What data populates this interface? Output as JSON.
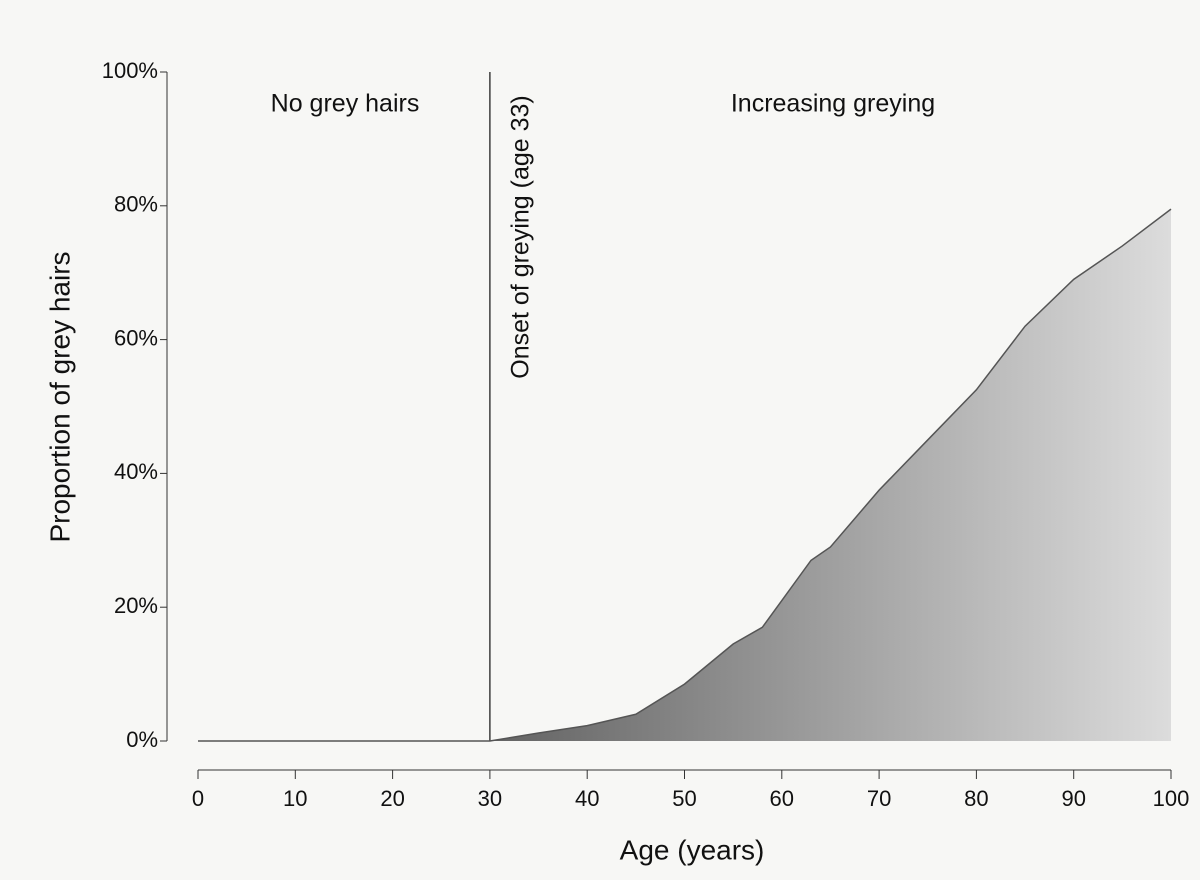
{
  "chart_data": {
    "type": "area",
    "x_label": "Age (years)",
    "y_label": "Proportion of grey hairs",
    "x": [
      0,
      5,
      10,
      15,
      20,
      25,
      30,
      35,
      40,
      45,
      50,
      55,
      58,
      60,
      63,
      65,
      70,
      75,
      80,
      85,
      90,
      95,
      100
    ],
    "values": [
      0,
      0,
      0,
      0,
      0,
      0,
      0,
      1.2,
      2.3,
      4,
      8.5,
      14.5,
      17,
      21,
      27,
      29,
      37.5,
      45,
      52.5,
      62,
      69,
      74,
      79.5
    ],
    "color": "#555555",
    "xlim": [
      0,
      100
    ],
    "xticks": [
      0,
      10,
      20,
      30,
      40,
      50,
      60,
      70,
      80,
      90,
      100
    ],
    "ylim": [
      0,
      100
    ],
    "yticks": [
      {
        "value": 0,
        "label": "0%"
      },
      {
        "value": 20,
        "label": "20%"
      },
      {
        "value": 40,
        "label": "40%"
      },
      {
        "value": 60,
        "label": "60%"
      },
      {
        "value": 80,
        "label": "80%"
      },
      {
        "value": 100,
        "label": "100%"
      }
    ],
    "vline": 30,
    "annotations": [
      "No grey hairs",
      "Onset of greying (age 33)",
      "Increasing greying"
    ]
  }
}
